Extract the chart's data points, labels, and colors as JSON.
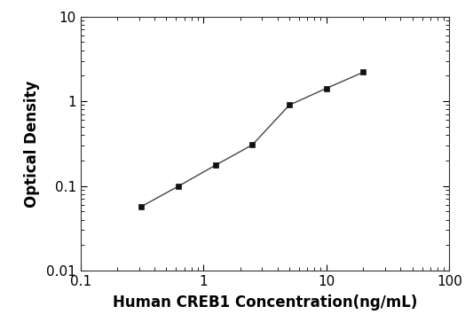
{
  "x_values": [
    0.313,
    0.625,
    1.25,
    2.5,
    5.0,
    10.0,
    20.0
  ],
  "y_values": [
    0.057,
    0.099,
    0.175,
    0.305,
    0.9,
    1.42,
    2.2
  ],
  "xlabel": "Human CREB1 Concentration(ng/mL)",
  "ylabel": "Optical Density",
  "xlim": [
    0.1,
    100
  ],
  "ylim": [
    0.01,
    10
  ],
  "line_color": "#444444",
  "marker": "s",
  "marker_color": "#111111",
  "marker_size": 5,
  "line_width": 1.0,
  "background_color": "#ffffff",
  "x_ticks": [
    0.1,
    1,
    10,
    100
  ],
  "y_ticks": [
    0.01,
    0.1,
    1,
    10
  ],
  "xlabel_fontsize": 12,
  "ylabel_fontsize": 12,
  "tick_fontsize": 11
}
